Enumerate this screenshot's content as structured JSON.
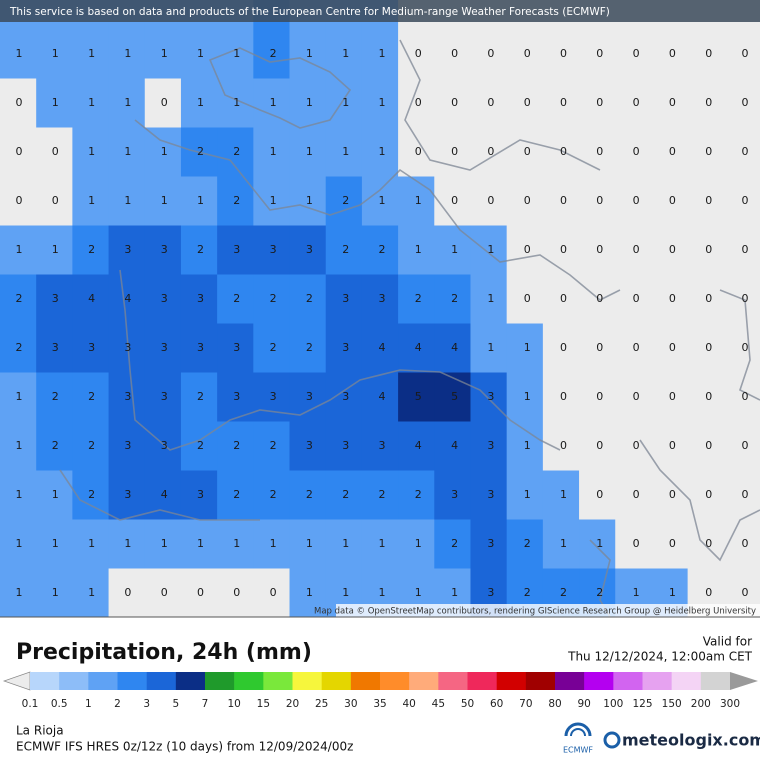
{
  "header": {
    "notice": "This service is based on data and products of the European Centre for Medium-range Weather Forecasts (ECMWF)"
  },
  "map": {
    "attribution": "Map data © OpenStreetMap contributors, rendering GIScience Research Group @ Heidelberg University",
    "grid": [
      [
        1,
        1,
        1,
        1,
        1,
        1,
        1,
        2,
        1,
        1,
        1,
        0,
        0,
        0,
        0,
        0,
        0,
        0,
        0,
        0,
        0
      ],
      [
        0,
        1,
        1,
        1,
        0,
        1,
        1,
        1,
        1,
        1,
        1,
        0,
        0,
        0,
        0,
        0,
        0,
        0,
        0,
        0,
        0
      ],
      [
        0,
        0,
        1,
        1,
        1,
        2,
        2,
        1,
        1,
        1,
        1,
        0,
        0,
        0,
        0,
        0,
        0,
        0,
        0,
        0,
        0
      ],
      [
        0,
        0,
        1,
        1,
        1,
        1,
        2,
        1,
        1,
        2,
        1,
        1,
        0,
        0,
        0,
        0,
        0,
        0,
        0,
        0,
        0
      ],
      [
        1,
        1,
        2,
        3,
        3,
        2,
        3,
        3,
        3,
        2,
        2,
        1,
        1,
        1,
        0,
        0,
        0,
        0,
        0,
        0,
        0
      ],
      [
        2,
        3,
        4,
        4,
        3,
        3,
        2,
        2,
        2,
        3,
        3,
        2,
        2,
        1,
        0,
        0,
        0,
        0,
        0,
        0,
        0
      ],
      [
        2,
        3,
        3,
        3,
        3,
        3,
        3,
        2,
        2,
        3,
        4,
        4,
        4,
        1,
        1,
        0,
        0,
        0,
        0,
        0,
        0
      ],
      [
        1,
        2,
        2,
        3,
        3,
        2,
        3,
        3,
        3,
        3,
        4,
        5,
        5,
        3,
        1,
        0,
        0,
        0,
        0,
        0,
        0
      ],
      [
        1,
        2,
        2,
        3,
        3,
        2,
        2,
        2,
        3,
        3,
        3,
        4,
        4,
        3,
        1,
        0,
        0,
        0,
        0,
        0,
        0
      ],
      [
        1,
        1,
        2,
        3,
        4,
        3,
        2,
        2,
        2,
        2,
        2,
        2,
        3,
        3,
        1,
        1,
        0,
        0,
        0,
        0,
        0
      ],
      [
        1,
        1,
        1,
        1,
        1,
        1,
        1,
        1,
        1,
        1,
        1,
        1,
        2,
        3,
        2,
        1,
        1,
        0,
        0,
        0,
        0
      ],
      [
        1,
        1,
        1,
        0,
        0,
        0,
        0,
        0,
        1,
        1,
        1,
        1,
        1,
        3,
        2,
        2,
        2,
        1,
        1,
        0,
        0
      ]
    ]
  },
  "footer": {
    "title": "Precipitation, 24h (mm)",
    "valid_label": "Valid for",
    "valid_time": "Thu 12/12/2024, 12:00am CET",
    "location": "La Rioja",
    "model": "ECMWF IFS HRES 0z/12z (10 days) from 12/09/2024/00z",
    "ecmwf_logo": "ECMWF",
    "brand": "meteologix.com"
  },
  "legend": {
    "bounds": [
      0.1,
      0.5,
      1,
      2,
      3,
      5,
      7,
      10,
      15,
      20,
      25,
      30,
      35,
      40,
      45,
      50,
      60,
      70,
      80,
      90,
      100,
      125,
      150,
      200,
      300
    ],
    "colors": [
      "#b7d6fb",
      "#8dbdf8",
      "#5fa2f4",
      "#2f86f0",
      "#1b66d8",
      "#0b2e86",
      "#1f9a2b",
      "#2fc92f",
      "#7ae83b",
      "#f6f63c",
      "#e4d600",
      "#f07800",
      "#ff8c2a",
      "#ffab7a",
      "#f56683",
      "#ef285b",
      "#d20000",
      "#a00000",
      "#780096",
      "#b400f0",
      "#d264f0",
      "#e6a2f0",
      "#f4d4f5",
      "#d3d3d3"
    ],
    "under_color": "#ececec",
    "over_color": "#9a9a9a"
  }
}
